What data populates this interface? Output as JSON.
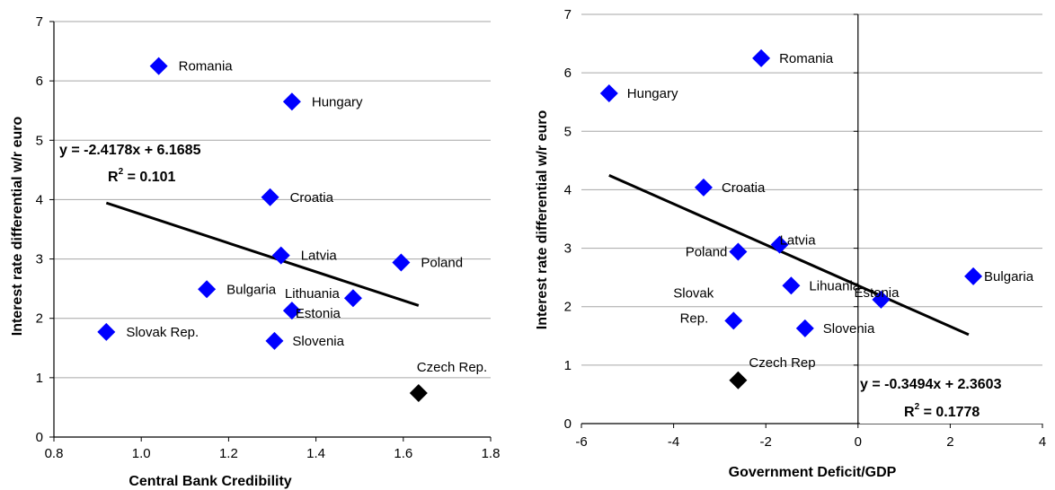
{
  "chart_data": [
    {
      "type": "scatter",
      "xlabel": "Central Bank Credibility",
      "ylabel": "Interest rate differential w/r euro",
      "xlim": [
        0.8,
        1.8
      ],
      "ylim": [
        0,
        7
      ],
      "xticks": [
        "0.8",
        "1.0",
        "1.2",
        "1.4",
        "1.6",
        "1.8"
      ],
      "yticks": [
        "0",
        "1",
        "2",
        "3",
        "4",
        "5",
        "6",
        "7"
      ],
      "grid": "horizontal",
      "points": [
        {
          "label": "Romania",
          "x": 1.04,
          "y": 6.25,
          "color": "#0000ff"
        },
        {
          "label": "Hungary",
          "x": 1.345,
          "y": 5.65,
          "color": "#0000ff"
        },
        {
          "label": "Croatia",
          "x": 1.295,
          "y": 4.04,
          "color": "#0000ff"
        },
        {
          "label": "Latvia",
          "x": 1.32,
          "y": 3.06,
          "color": "#0000ff"
        },
        {
          "label": "Poland",
          "x": 1.595,
          "y": 2.94,
          "color": "#0000ff"
        },
        {
          "label": "Bulgaria",
          "x": 1.15,
          "y": 2.49,
          "color": "#0000ff"
        },
        {
          "label": "Lithuania",
          "x": 1.485,
          "y": 2.34,
          "color": "#0000ff"
        },
        {
          "label": "Estonia",
          "x": 1.345,
          "y": 2.13,
          "color": "#0000ff"
        },
        {
          "label": "Slovak Rep.",
          "x": 0.92,
          "y": 1.77,
          "color": "#0000ff"
        },
        {
          "label": "Slovenia",
          "x": 1.305,
          "y": 1.62,
          "color": "#0000ff"
        },
        {
          "label": "Czech Rep.",
          "x": 1.635,
          "y": 0.74,
          "color": "#000000"
        }
      ],
      "trendline": {
        "slope": -2.4178,
        "intercept": 6.1685,
        "x_range": [
          0.92,
          1.635
        ]
      },
      "equation": "y = -2.4178x + 6.1685",
      "r2_prefix": "R",
      "r2_value": " = 0.101"
    },
    {
      "type": "scatter",
      "xlabel": "Government Deficit/GDP",
      "ylabel": "Interest rate differential w/r euro",
      "xlim": [
        -6,
        4
      ],
      "ylim": [
        0,
        7
      ],
      "xticks": [
        "-6",
        "-4",
        "-2",
        "0",
        "2",
        "4"
      ],
      "yticks": [
        "0",
        "1",
        "2",
        "3",
        "4",
        "5",
        "6",
        "7"
      ],
      "grid": "horizontal",
      "points": [
        {
          "label": "Romania",
          "x": -2.1,
          "y": 6.25,
          "color": "#0000ff"
        },
        {
          "label": "Hungary",
          "x": -5.4,
          "y": 5.65,
          "color": "#0000ff"
        },
        {
          "label": "Croatia",
          "x": -3.35,
          "y": 4.04,
          "color": "#0000ff"
        },
        {
          "label": "Latvia",
          "x": -1.7,
          "y": 3.06,
          "color": "#0000ff"
        },
        {
          "label": "Poland",
          "x": -2.6,
          "y": 2.94,
          "color": "#0000ff"
        },
        {
          "label": "Lihuania",
          "x": -1.45,
          "y": 2.36,
          "color": "#0000ff"
        },
        {
          "label": "Estonia",
          "x": 0.5,
          "y": 2.12,
          "color": "#0000ff"
        },
        {
          "label": "Bulgaria",
          "x": 2.5,
          "y": 2.52,
          "color": "#0000ff"
        },
        {
          "label": "Slovak Rep.",
          "x": -2.7,
          "y": 1.76,
          "color": "#0000ff"
        },
        {
          "label": "Slovenia",
          "x": -1.15,
          "y": 1.63,
          "color": "#0000ff"
        },
        {
          "label": "Czech Rep",
          "x": -2.6,
          "y": 0.74,
          "color": "#000000"
        }
      ],
      "trendline": {
        "slope": -0.3494,
        "intercept": 2.3603,
        "x_range": [
          -5.4,
          2.4
        ]
      },
      "equation": "y = -0.3494x + 2.3603",
      "r2_prefix": "R",
      "r2_value": " = 0.1778"
    }
  ]
}
